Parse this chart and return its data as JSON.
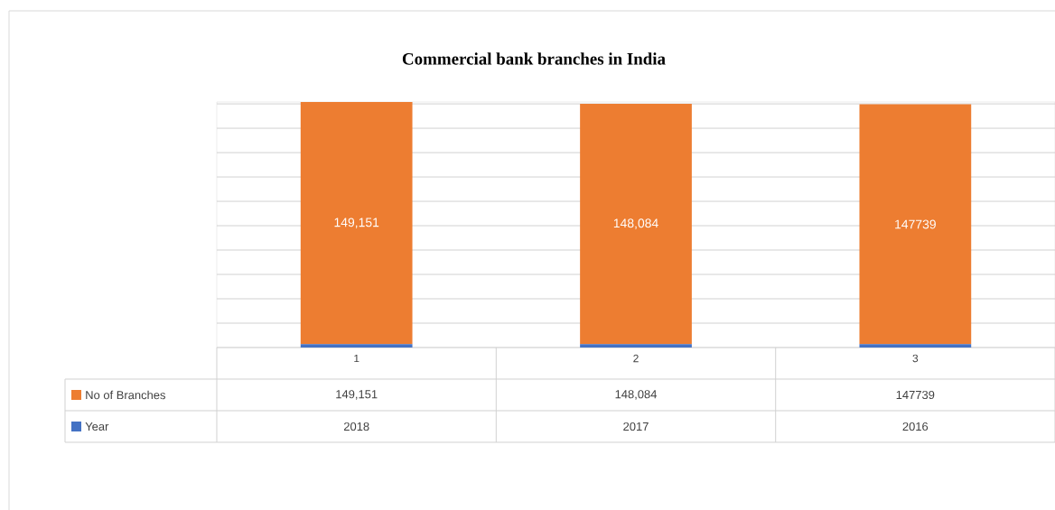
{
  "chart_data": {
    "type": "bar",
    "title": "Commercial bank branches  in India",
    "stacked": true,
    "categories": [
      "1",
      "2",
      "3"
    ],
    "series": [
      {
        "name": "Year",
        "color": "#4472c4",
        "values": [
          2018,
          2017,
          2016
        ],
        "value_labels": [
          "2018",
          "2017",
          "2016"
        ]
      },
      {
        "name": "No of Branches",
        "color": "#ed7d31",
        "values": [
          149151,
          148084,
          147739
        ],
        "value_labels": [
          "149,151",
          "148,084",
          "147739"
        ]
      }
    ],
    "yticks": [
      {
        "value": 0,
        "label": null
      },
      {
        "value": 15000,
        "label": null
      },
      {
        "value": 30000,
        "label": null
      },
      {
        "value": 45000,
        "label": null
      },
      {
        "value": 60000,
        "label": null
      },
      {
        "value": 75000,
        "label": null
      },
      {
        "value": 90000,
        "label": null
      },
      {
        "value": 105000,
        "label": null
      },
      {
        "value": 120000,
        "label": null
      },
      {
        "value": 135000,
        "label": null
      },
      {
        "value": 150000,
        "label": null
      }
    ],
    "grid": "y",
    "legend": "bottom"
  }
}
